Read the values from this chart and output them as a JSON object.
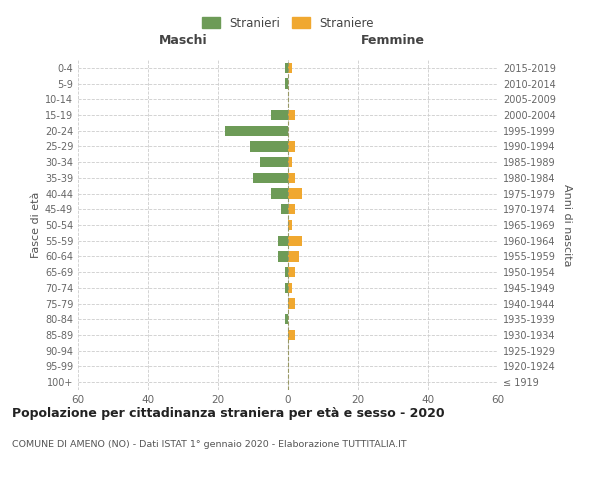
{
  "age_groups": [
    "100+",
    "95-99",
    "90-94",
    "85-89",
    "80-84",
    "75-79",
    "70-74",
    "65-69",
    "60-64",
    "55-59",
    "50-54",
    "45-49",
    "40-44",
    "35-39",
    "30-34",
    "25-29",
    "20-24",
    "15-19",
    "10-14",
    "5-9",
    "0-4"
  ],
  "birth_years": [
    "≤ 1919",
    "1920-1924",
    "1925-1929",
    "1930-1934",
    "1935-1939",
    "1940-1944",
    "1945-1949",
    "1950-1954",
    "1955-1959",
    "1960-1964",
    "1965-1969",
    "1970-1974",
    "1975-1979",
    "1980-1984",
    "1985-1989",
    "1990-1994",
    "1995-1999",
    "2000-2004",
    "2005-2009",
    "2010-2014",
    "2015-2019"
  ],
  "maschi_stranieri": [
    0,
    0,
    0,
    0,
    1,
    0,
    1,
    1,
    3,
    3,
    0,
    2,
    5,
    10,
    8,
    11,
    18,
    5,
    0,
    1,
    1
  ],
  "femmine_straniere": [
    0,
    0,
    0,
    2,
    0,
    2,
    1,
    2,
    3,
    4,
    1,
    2,
    4,
    2,
    1,
    2,
    0,
    2,
    0,
    0,
    1
  ],
  "color_maschi": "#6d9b57",
  "color_femmine": "#f0a830",
  "title": "Popolazione per cittadinanza straniera per età e sesso - 2020",
  "subtitle": "COMUNE DI AMENO (NO) - Dati ISTAT 1° gennaio 2020 - Elaborazione TUTTITALIA.IT",
  "xlabel_left": "Maschi",
  "xlabel_right": "Femmine",
  "ylabel_left": "Fasce di età",
  "ylabel_right": "Anni di nascita",
  "legend_maschi": "Stranieri",
  "legend_femmine": "Straniere",
  "xlim": 60,
  "background_color": "#ffffff",
  "grid_color": "#cccccc"
}
